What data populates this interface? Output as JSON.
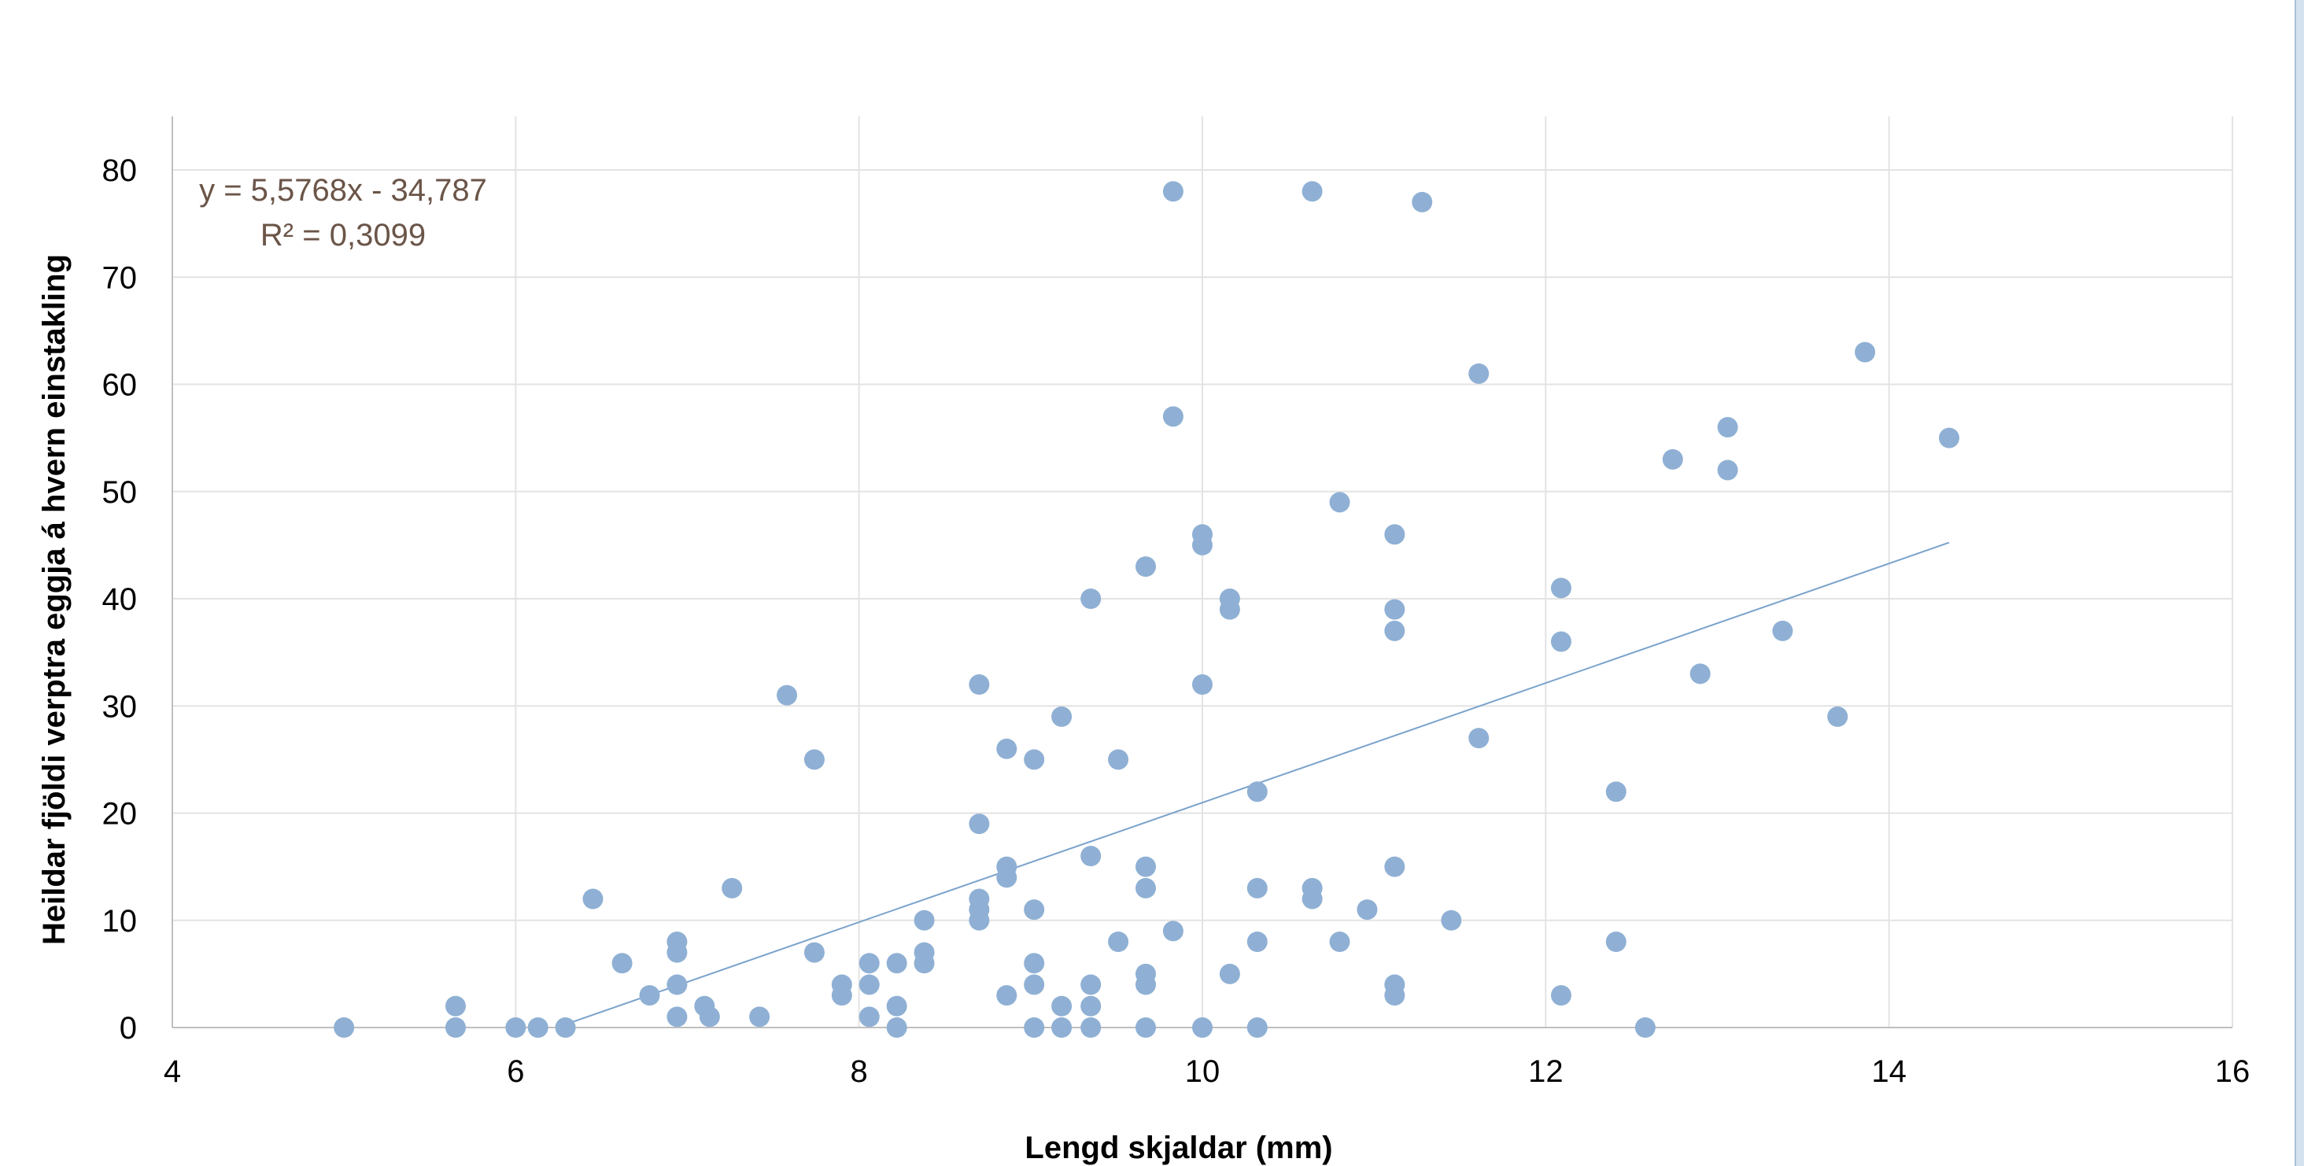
{
  "chart_data": {
    "type": "scatter",
    "title": "",
    "xlabel": "Lengd skjaldar (mm)",
    "ylabel": "Heildar fjöldi verptra eggja á hvern einstakling",
    "xlim": [
      4,
      16
    ],
    "ylim": [
      0,
      80
    ],
    "xticks": [
      4,
      6,
      8,
      10,
      12,
      14,
      16
    ],
    "yticks": [
      0,
      10,
      20,
      30,
      40,
      50,
      60,
      70,
      80
    ],
    "grid": true,
    "marker_color": "#8fb0d4",
    "trendline_color": "#7aa2cb",
    "equation_color": "#6b5548",
    "trendline": {
      "equation": "y = 5,5768x - 34,787",
      "r_squared": "R² = 0,3099",
      "slope": 5.5768,
      "intercept": -34.787,
      "x_range": [
        6.24,
        14.35
      ]
    },
    "points": [
      [
        5.0,
        0
      ],
      [
        5.65,
        2
      ],
      [
        5.65,
        0
      ],
      [
        6.0,
        0
      ],
      [
        6.13,
        0
      ],
      [
        6.29,
        0
      ],
      [
        6.45,
        12
      ],
      [
        6.62,
        6
      ],
      [
        6.78,
        3
      ],
      [
        6.94,
        8
      ],
      [
        6.94,
        7
      ],
      [
        6.94,
        4
      ],
      [
        6.94,
        1
      ],
      [
        7.1,
        2
      ],
      [
        7.13,
        1
      ],
      [
        7.26,
        13
      ],
      [
        7.42,
        1
      ],
      [
        7.58,
        31
      ],
      [
        7.74,
        25
      ],
      [
        7.74,
        7
      ],
      [
        7.9,
        4
      ],
      [
        7.9,
        3
      ],
      [
        8.06,
        6
      ],
      [
        8.06,
        4
      ],
      [
        8.06,
        1
      ],
      [
        8.22,
        6
      ],
      [
        8.22,
        2
      ],
      [
        8.22,
        0
      ],
      [
        8.38,
        10
      ],
      [
        8.38,
        7
      ],
      [
        8.38,
        6
      ],
      [
        8.7,
        32
      ],
      [
        8.7,
        19
      ],
      [
        8.7,
        12
      ],
      [
        8.7,
        11
      ],
      [
        8.7,
        10
      ],
      [
        8.86,
        26
      ],
      [
        8.86,
        15
      ],
      [
        8.86,
        14
      ],
      [
        8.86,
        3
      ],
      [
        9.02,
        25
      ],
      [
        9.02,
        11
      ],
      [
        9.02,
        6
      ],
      [
        9.02,
        4
      ],
      [
        9.02,
        0
      ],
      [
        9.18,
        29
      ],
      [
        9.18,
        2
      ],
      [
        9.18,
        0
      ],
      [
        9.35,
        40
      ],
      [
        9.35,
        16
      ],
      [
        9.35,
        4
      ],
      [
        9.35,
        2
      ],
      [
        9.35,
        0
      ],
      [
        9.51,
        25
      ],
      [
        9.51,
        8
      ],
      [
        9.67,
        43
      ],
      [
        9.67,
        15
      ],
      [
        9.67,
        13
      ],
      [
        9.67,
        5
      ],
      [
        9.67,
        4
      ],
      [
        9.67,
        0
      ],
      [
        9.83,
        78
      ],
      [
        9.83,
        57
      ],
      [
        9.83,
        9
      ],
      [
        10.0,
        46
      ],
      [
        10.0,
        45
      ],
      [
        10.0,
        32
      ],
      [
        10.0,
        0
      ],
      [
        10.16,
        40
      ],
      [
        10.16,
        39
      ],
      [
        10.16,
        5
      ],
      [
        10.32,
        22
      ],
      [
        10.32,
        13
      ],
      [
        10.32,
        8
      ],
      [
        10.32,
        0
      ],
      [
        10.64,
        78
      ],
      [
        10.64,
        13
      ],
      [
        10.64,
        12
      ],
      [
        10.8,
        49
      ],
      [
        10.8,
        8
      ],
      [
        10.96,
        11
      ],
      [
        11.28,
        77
      ],
      [
        11.12,
        46
      ],
      [
        11.12,
        39
      ],
      [
        11.12,
        37
      ],
      [
        11.12,
        15
      ],
      [
        11.12,
        4
      ],
      [
        11.12,
        3
      ],
      [
        11.45,
        10
      ],
      [
        11.61,
        61
      ],
      [
        11.61,
        27
      ],
      [
        12.09,
        41
      ],
      [
        12.09,
        36
      ],
      [
        12.09,
        3
      ],
      [
        12.41,
        22
      ],
      [
        12.41,
        8
      ],
      [
        12.58,
        0
      ],
      [
        12.74,
        53
      ],
      [
        12.9,
        33
      ],
      [
        13.06,
        56
      ],
      [
        13.06,
        52
      ],
      [
        13.38,
        37
      ],
      [
        13.7,
        29
      ],
      [
        13.86,
        63
      ],
      [
        14.35,
        55
      ]
    ]
  }
}
